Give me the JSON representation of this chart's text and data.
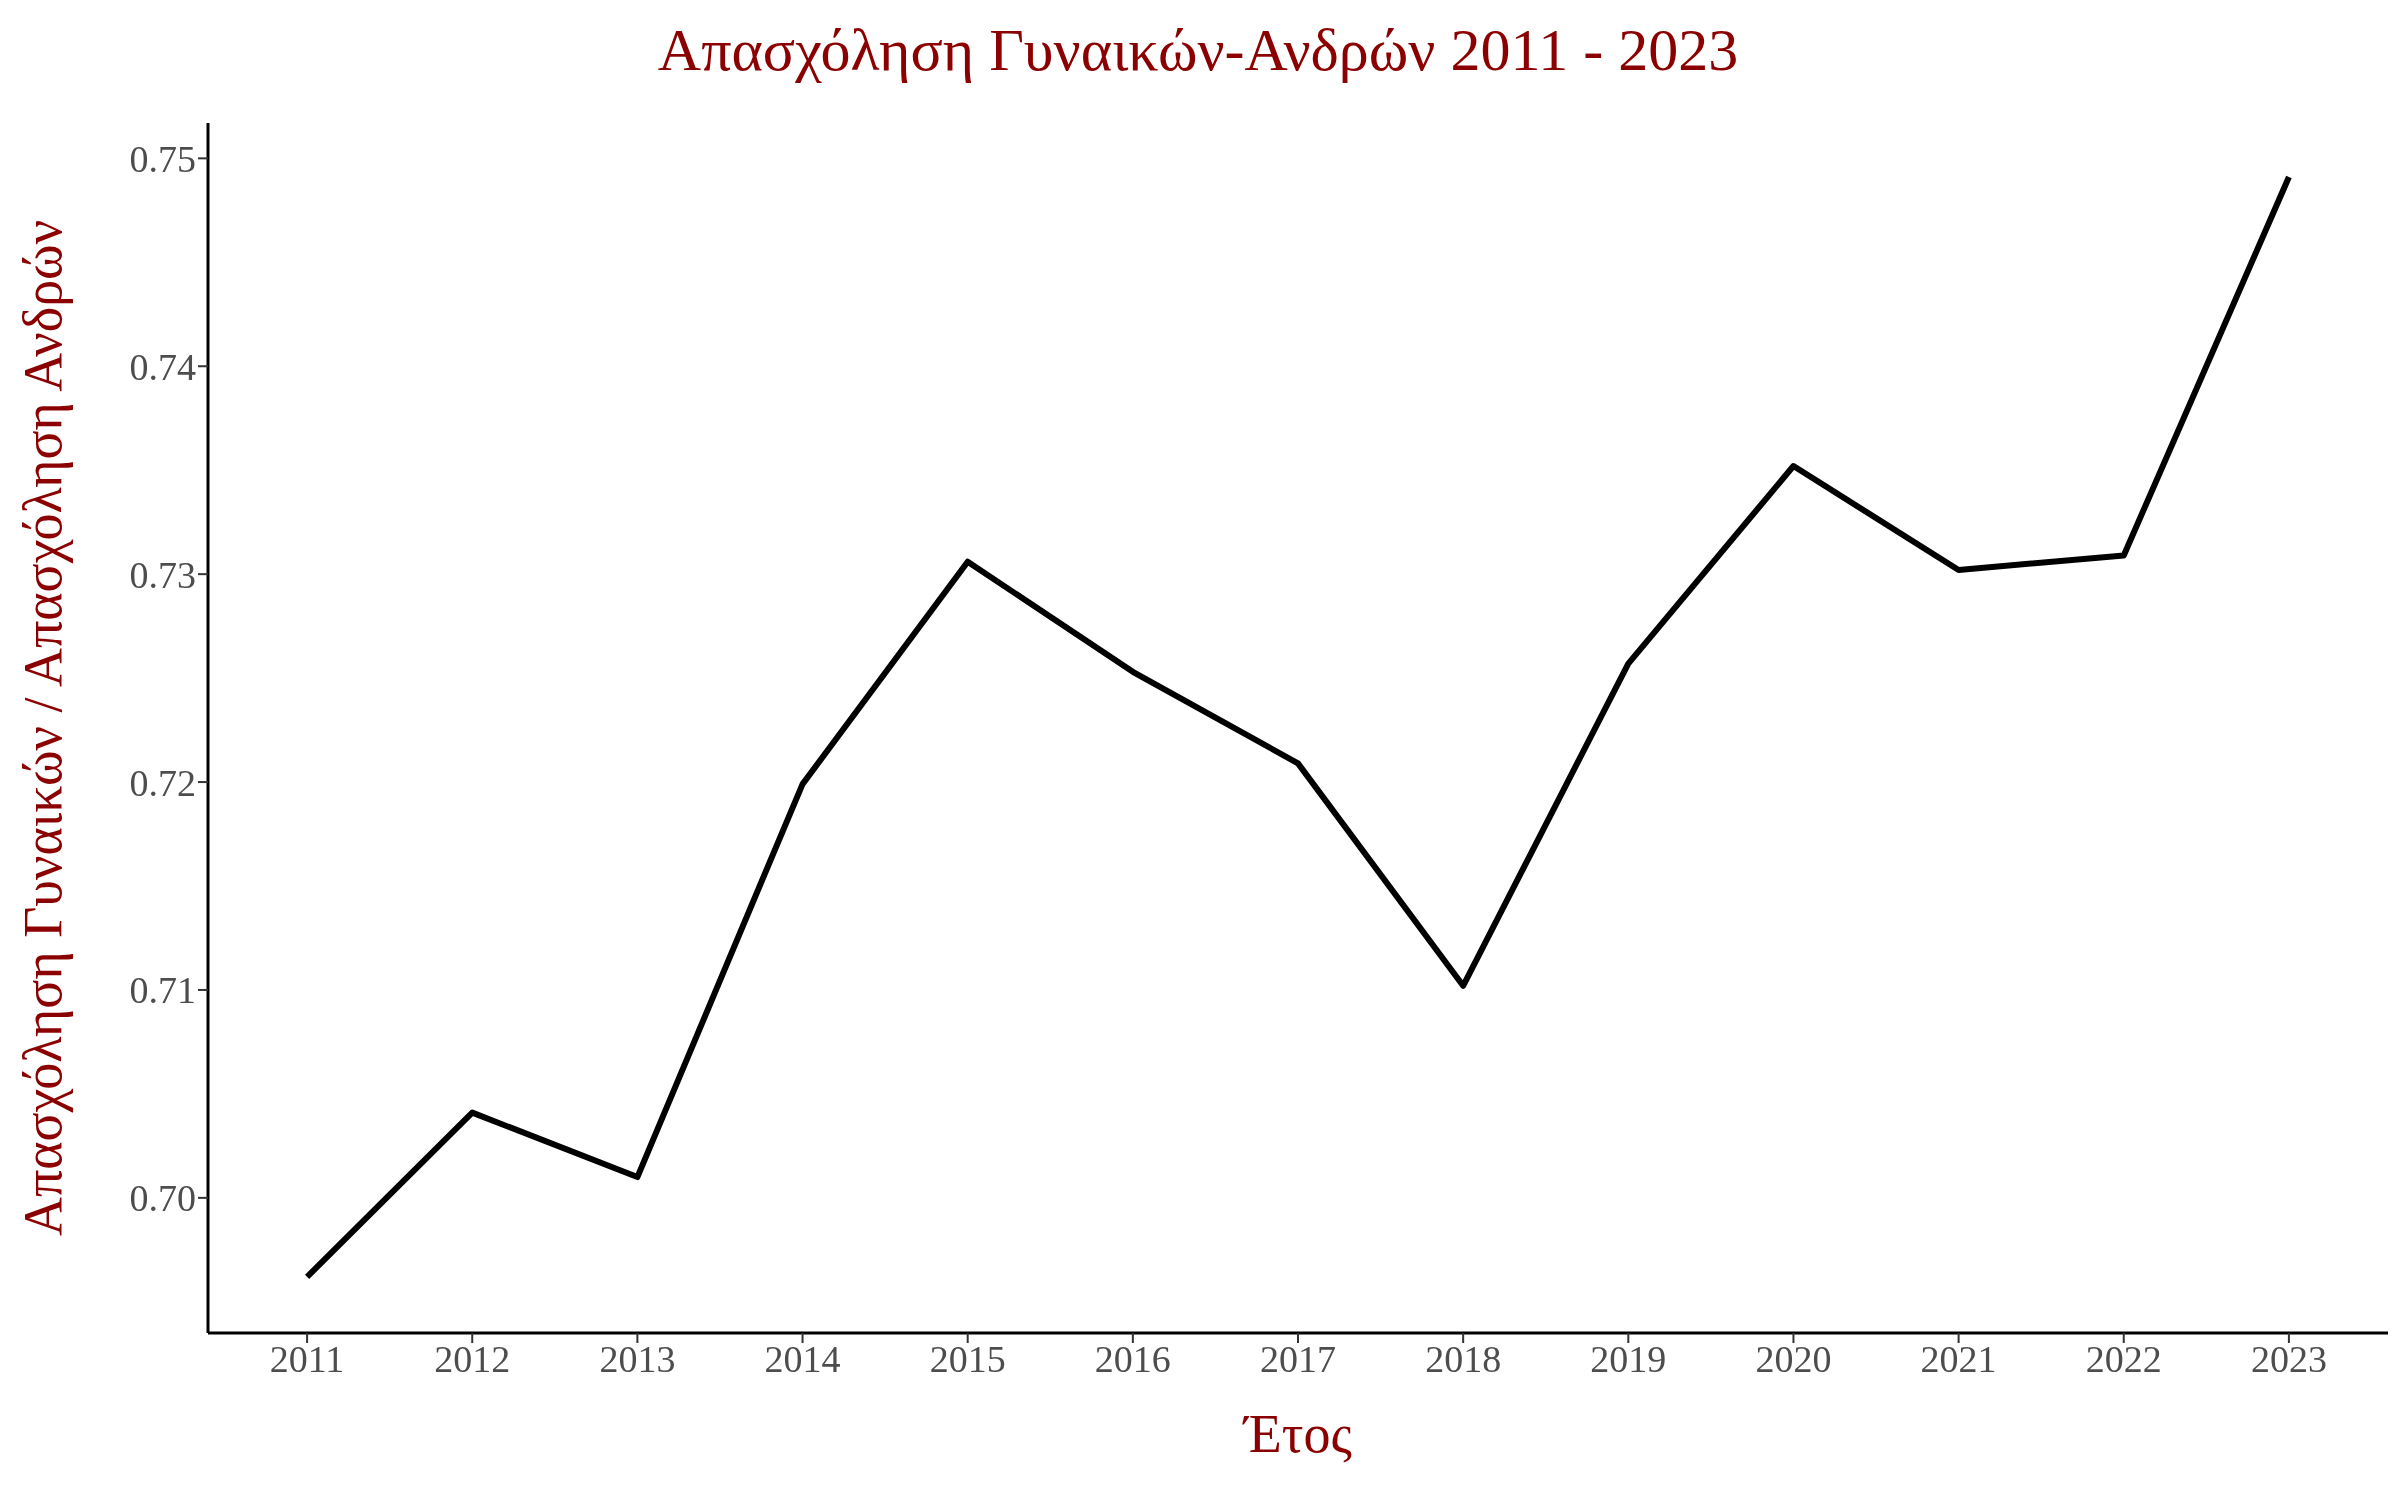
{
  "chart_data": {
    "type": "line",
    "title": "Απασχόληση Γυναικών-Ανδρών 2011 - 2023",
    "xlabel": "Έτος",
    "ylabel": "Απασχόληση Γυναικών / Απασχόληση Ανδρών",
    "x": [
      2011,
      2012,
      2013,
      2014,
      2015,
      2016,
      2017,
      2018,
      2019,
      2020,
      2021,
      2022,
      2023
    ],
    "series": [
      {
        "color": "#000000",
        "values": [
          0.6962,
          0.7041,
          0.701,
          0.7199,
          0.7306,
          0.7253,
          0.7209,
          0.7102,
          0.7257,
          0.7352,
          0.7302,
          0.7309,
          0.7491
        ]
      }
    ],
    "xlim": [
      2010.4,
      2023.6
    ],
    "xticks": [
      2011,
      2012,
      2013,
      2014,
      2015,
      2016,
      2017,
      2018,
      2019,
      2020,
      2021,
      2022,
      2023
    ],
    "ylim": [
      0.6935,
      0.7517
    ],
    "yticks": [
      {
        "value": 0.7,
        "label": "0.70"
      },
      0.71,
      0.72,
      0.73,
      0.74,
      0.75
    ],
    "grid": false,
    "legend": false,
    "marker": "none",
    "line_style": "solid"
  }
}
